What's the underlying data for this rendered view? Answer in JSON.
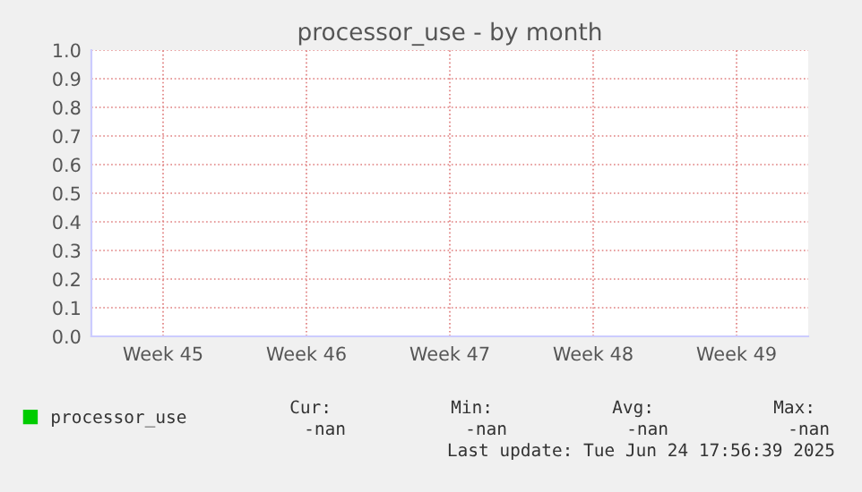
{
  "chart_data": {
    "type": "line",
    "title": "processor_use - by month",
    "categories": [
      "Week 45",
      "Week 46",
      "Week 47",
      "Week 48",
      "Week 49"
    ],
    "ylim": [
      0,
      1
    ],
    "yticks": [
      {
        "value": 0,
        "label": "0.0"
      },
      {
        "value": 0.1,
        "label": "0.1"
      },
      {
        "value": 0.2,
        "label": "0.2"
      },
      {
        "value": 0.3,
        "label": "0.3"
      },
      {
        "value": 0.4,
        "label": "0.4"
      },
      {
        "value": 0.5,
        "label": "0.5"
      },
      {
        "value": 0.6,
        "label": "0.6"
      },
      {
        "value": 0.7,
        "label": "0.7"
      },
      {
        "value": 0.8,
        "label": "0.8"
      },
      {
        "value": 0.9,
        "label": "0.9"
      },
      {
        "value": 1,
        "label": "1.0"
      }
    ],
    "grid": true,
    "line_style": "dotted",
    "legend": "bottom left",
    "series": [
      {
        "name": "processor_use",
        "color": "#00cc00",
        "values": [
          null,
          null,
          null,
          null,
          null
        ]
      }
    ],
    "annotations": [
      "Cur:",
      "Min:",
      "Avg:",
      "Max:",
      "-nan",
      "-nan",
      "-nan",
      "-nan",
      "Last update: Tue Jun 24 17:56:39 2025"
    ]
  }
}
